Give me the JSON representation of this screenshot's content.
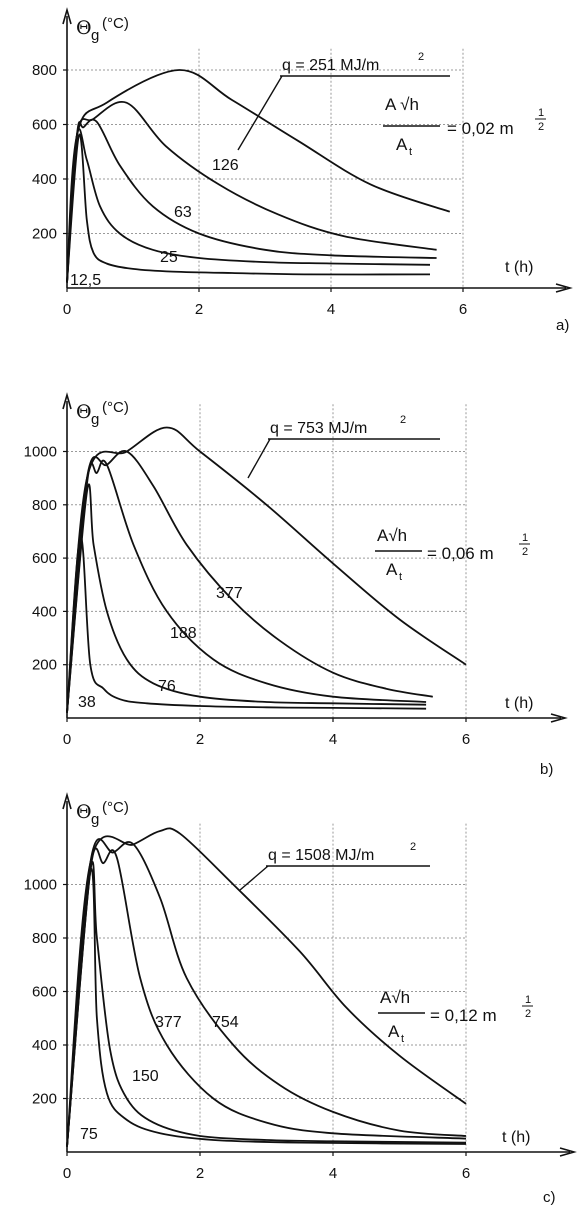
{
  "figure": {
    "line_color": "#111111",
    "grid_color": "#9a9a9a",
    "background": "#ffffff"
  },
  "chart_data": [
    {
      "type": "line",
      "panel_label": "a)",
      "y_symbol": "Θ",
      "y_subscript": "g",
      "y_unit": "(°C)",
      "x_axis_label": "t (h)",
      "xlim": [
        0,
        7.5
      ],
      "ylim": [
        0,
        900
      ],
      "x_ticks": [
        0,
        2,
        4,
        6
      ],
      "y_ticks": [
        200,
        400,
        600,
        800
      ],
      "q_annotation": "q = 251  MJ/m",
      "q_exponent": "2",
      "ratio_num": "A √h",
      "ratio_den": "A",
      "ratio_den_sub": "t",
      "ratio_value": "= 0,02 m",
      "ratio_exp_num": "1",
      "ratio_exp_den": "2",
      "series": [
        {
          "name": "251",
          "x": [
            0,
            0.15,
            0.6,
            1.7,
            2.5,
            3.5,
            4.6,
            5.8
          ],
          "y": [
            20,
            560,
            680,
            800,
            690,
            540,
            380,
            280
          ]
        },
        {
          "name": "126",
          "x": [
            0,
            0.15,
            0.4,
            0.9,
            1.5,
            2.3,
            3.2,
            4.2,
            5.6
          ],
          "y": [
            20,
            560,
            620,
            680,
            520,
            380,
            270,
            190,
            140
          ]
        },
        {
          "name": "63",
          "x": [
            0,
            0.15,
            0.25,
            0.45,
            0.8,
            1.3,
            2.0,
            3.0,
            4.0,
            5.6
          ],
          "y": [
            20,
            560,
            590,
            610,
            450,
            300,
            200,
            140,
            120,
            110
          ]
        },
        {
          "name": "25",
          "x": [
            0,
            0.15,
            0.3,
            0.5,
            0.8,
            1.3,
            2.0,
            3.0,
            4.0,
            5.5
          ],
          "y": [
            20,
            560,
            470,
            300,
            200,
            140,
            110,
            95,
            90,
            85
          ]
        },
        {
          "name": "12,5",
          "x": [
            0,
            0.18,
            0.3,
            0.4,
            0.6,
            1.0,
            1.6,
            2.5,
            3.6,
            5.5
          ],
          "y": [
            20,
            560,
            250,
            130,
            90,
            70,
            60,
            55,
            50,
            50
          ]
        }
      ],
      "curve_labels": [
        "126",
        "63",
        "25",
        "12,5"
      ]
    },
    {
      "type": "line",
      "panel_label": "b)",
      "y_symbol": "Θ",
      "y_subscript": "g",
      "y_unit": "(°C)",
      "x_axis_label": "t (h)",
      "xlim": [
        0,
        7.5
      ],
      "ylim": [
        0,
        1200
      ],
      "x_ticks": [
        0,
        2,
        4,
        6
      ],
      "y_ticks": [
        200,
        400,
        600,
        800,
        1000
      ],
      "q_annotation": "q = 753  MJ/m",
      "q_exponent": "2",
      "ratio_num": "A√h",
      "ratio_den": "A",
      "ratio_den_sub": "t",
      "ratio_value": "= 0,06 m",
      "ratio_exp_num": "1",
      "ratio_exp_den": "2",
      "series": [
        {
          "name": "753",
          "x": [
            0,
            0.3,
            0.9,
            1.5,
            2.0,
            3.0,
            4.0,
            5.0,
            6.0
          ],
          "y": [
            20,
            900,
            1000,
            1090,
            1000,
            800,
            580,
            370,
            200
          ]
        },
        {
          "name": "377",
          "x": [
            0,
            0.3,
            0.6,
            0.9,
            1.3,
            1.8,
            2.5,
            3.2,
            4.0,
            4.8,
            5.5
          ],
          "y": [
            20,
            900,
            950,
            1000,
            870,
            650,
            440,
            290,
            170,
            110,
            80
          ]
        },
        {
          "name": "188",
          "x": [
            0,
            0.3,
            0.45,
            0.6,
            1.0,
            1.5,
            2.2,
            3.0,
            4.0,
            5.4
          ],
          "y": [
            20,
            880,
            920,
            950,
            650,
            400,
            220,
            130,
            80,
            60
          ]
        },
        {
          "name": "76",
          "x": [
            0,
            0.3,
            0.4,
            0.6,
            0.9,
            1.3,
            2.0,
            3.0,
            4.0,
            5.4
          ],
          "y": [
            20,
            850,
            650,
            400,
            220,
            130,
            80,
            60,
            55,
            50
          ]
        },
        {
          "name": "38",
          "x": [
            0,
            0.2,
            0.35,
            0.55,
            0.8,
            1.2,
            2.0,
            3.0,
            4.0,
            5.4
          ],
          "y": [
            20,
            680,
            200,
            110,
            70,
            55,
            45,
            40,
            38,
            35
          ]
        }
      ],
      "curve_labels": [
        "377",
        "188",
        "76",
        "38"
      ]
    },
    {
      "type": "line",
      "panel_label": "c)",
      "y_symbol": "Θ",
      "y_subscript": "g",
      "y_unit": "(°C)",
      "x_axis_label": "t (h)",
      "xlim": [
        0,
        7.5
      ],
      "ylim": [
        0,
        1250
      ],
      "x_ticks": [
        0,
        2,
        4,
        6
      ],
      "y_ticks": [
        200,
        400,
        600,
        800,
        1000
      ],
      "q_annotation": "q = 1508  MJ/m",
      "q_exponent": "2",
      "ratio_num": "A√h",
      "ratio_den": "A",
      "ratio_den_sub": "t",
      "ratio_value": "= 0,12 m",
      "ratio_exp_num": "1",
      "ratio_exp_den": "2",
      "series": [
        {
          "name": "1508",
          "x": [
            0,
            0.35,
            1.0,
            1.4,
            1.7,
            2.5,
            3.5,
            4.2,
            5.0,
            6.0
          ],
          "y": [
            20,
            1080,
            1150,
            1200,
            1190,
            1000,
            750,
            540,
            360,
            180
          ]
        },
        {
          "name": "754",
          "x": [
            0,
            0.35,
            0.7,
            1.0,
            1.4,
            1.8,
            2.5,
            3.2,
            4.0,
            5.0,
            6.0
          ],
          "y": [
            20,
            1080,
            1120,
            1150,
            950,
            650,
            400,
            250,
            150,
            80,
            60
          ]
        },
        {
          "name": "377",
          "x": [
            0,
            0.35,
            0.55,
            0.75,
            1.1,
            1.5,
            2.2,
            3.0,
            4.0,
            6.0
          ],
          "y": [
            20,
            1050,
            1080,
            1100,
            650,
            400,
            200,
            110,
            70,
            50
          ]
        },
        {
          "name": "150",
          "x": [
            0,
            0.35,
            0.45,
            0.65,
            0.9,
            1.3,
            2.0,
            3.0,
            4.0,
            6.0
          ],
          "y": [
            20,
            1050,
            800,
            380,
            200,
            110,
            60,
            45,
            40,
            35
          ]
        },
        {
          "name": "75",
          "x": [
            0,
            0.35,
            0.45,
            0.6,
            0.9,
            1.4,
            2.2,
            3.5,
            6.0
          ],
          "y": [
            20,
            1050,
            500,
            220,
            120,
            70,
            45,
            35,
            30
          ]
        }
      ],
      "curve_labels": [
        "377",
        "754",
        "150",
        "75"
      ]
    }
  ]
}
